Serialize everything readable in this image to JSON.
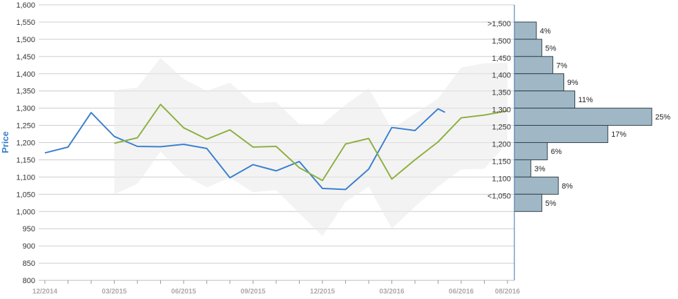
{
  "chart_data": {
    "type": "line",
    "ylabel": "Price",
    "ylim": [
      800,
      1600
    ],
    "y_ticks": [
      800,
      850,
      900,
      950,
      1000,
      1050,
      1100,
      1150,
      1200,
      1250,
      1300,
      1350,
      1400,
      1450,
      1500,
      1550,
      1600
    ],
    "y_tick_labels": [
      "800",
      "850",
      "900",
      "950",
      "1,000",
      "1,050",
      "1,100",
      "1,150",
      "1,200",
      "1,250",
      "1,300",
      "1,350",
      "1,400",
      "1,450",
      "1,500",
      "1,550",
      "1,600"
    ],
    "x_ticks": [
      "12/2014",
      "03/2015",
      "06/2015",
      "09/2015",
      "12/2015",
      "03/2016",
      "06/2016",
      "08/2016"
    ],
    "grid": true,
    "series": [
      {
        "color": "#3a7fd0",
        "x": [
          "12/2014",
          "01/2015",
          "02/2015",
          "03/2015",
          "04/2015",
          "05/2015",
          "06/2015",
          "07/2015",
          "08/2015",
          "09/2015",
          "10/2015",
          "11/2015",
          "12/2015",
          "01/2016",
          "02/2016",
          "03/2016",
          "04/2016",
          "05/2016",
          "05/2016"
        ],
        "values": [
          1170,
          1187,
          1287,
          1218,
          1189,
          1188,
          1195,
          1183,
          1098,
          1136,
          1118,
          1145,
          1067,
          1064,
          1123,
          1244,
          1235,
          1298,
          1288
        ]
      },
      {
        "color": "#8db040",
        "x": [
          "03/2015",
          "04/2015",
          "05/2015",
          "06/2015",
          "07/2015",
          "08/2015",
          "09/2015",
          "10/2015",
          "11/2015",
          "12/2015",
          "01/2016",
          "02/2016",
          "03/2016",
          "04/2016",
          "05/2016",
          "06/2016",
          "07/2016",
          "08/2016"
        ],
        "values": [
          1198,
          1214,
          1311,
          1243,
          1210,
          1237,
          1187,
          1189,
          1127,
          1090,
          1196,
          1212,
          1094,
          1150,
          1202,
          1272,
          1280,
          1292
        ]
      }
    ],
    "band": {
      "color": "#e9e9e9",
      "x": [
        "03/2015",
        "04/2015",
        "05/2015",
        "06/2015",
        "07/2015",
        "08/2015",
        "09/2015",
        "10/2015",
        "11/2015",
        "12/2015",
        "01/2016",
        "02/2016",
        "03/2016",
        "04/2016",
        "05/2016",
        "06/2016",
        "07/2016",
        "08/2016"
      ],
      "upper": [
        1352,
        1360,
        1446,
        1385,
        1350,
        1374,
        1315,
        1318,
        1254,
        1254,
        1310,
        1358,
        1240,
        1284,
        1328,
        1418,
        1430,
        1432
      ],
      "lower": [
        1050,
        1080,
        1174,
        1106,
        1070,
        1098,
        1056,
        1062,
        995,
        928,
        1028,
        1072,
        950,
        1014,
        1072,
        1122,
        1124,
        1200
      ]
    },
    "histogram": {
      "color": "#a0b8c6",
      "bins": [
        ">1,500",
        "1,500",
        "1,450",
        "1,400",
        "1,350",
        "1,300",
        "1,250",
        "1,200",
        "1,150",
        "1,100",
        "<1,050"
      ],
      "bin_centers": [
        1525,
        1475,
        1425,
        1375,
        1325,
        1275,
        1225,
        1175,
        1125,
        1075,
        1025
      ],
      "labels": [
        "4%",
        "5%",
        "7%",
        "9%",
        "11%",
        "25%",
        "17%",
        "6%",
        "3%",
        "8%",
        "5%"
      ],
      "values": [
        4,
        5,
        7,
        9,
        11,
        25,
        17,
        6,
        3,
        8,
        5
      ]
    }
  }
}
